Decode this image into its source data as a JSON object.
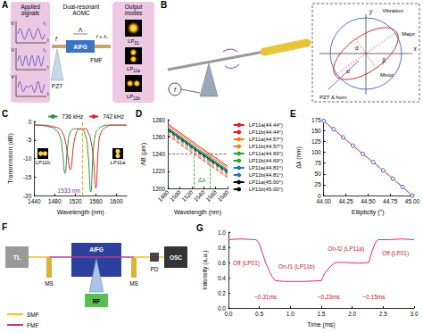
{
  "diagrams": {
    "A": {
      "panel": "A",
      "applied_title": "Applied signals",
      "v_axis": "V",
      "t_axis": "t",
      "signals": [
        "f₁",
        "f₂"
      ],
      "device": "Dual-resonant AOMC",
      "grating": "AIFG",
      "period": "Λ",
      "input": "f",
      "output": "f + fₙ",
      "pzt": "PZT",
      "fiber": "FMF",
      "modes_title": "Output modes",
      "modes": [
        "LP01",
        "LP11a",
        "LP11b"
      ]
    },
    "B": {
      "panel": "B",
      "vibration": "Vibration",
      "minor": "Minor",
      "major": "Major",
      "source": "PZT & horn",
      "x_axis": "x",
      "y_axis": "y",
      "signal": "f",
      "u": "u",
      "alpha": "α",
      "beta": "β"
    },
    "F": {
      "panel": "F",
      "laser": "TL",
      "stage": "MS",
      "grating": "AIFG",
      "scope": "OSC",
      "detector": "PD",
      "driver": "RF",
      "smf": "SMF",
      "fmf": "FMF"
    }
  },
  "chart_data": [
    {
      "panel": "C",
      "type": "line",
      "x_label": "Wavelength (nm)",
      "y_label": "Transmission (dB)",
      "x": [
        1440,
        1450,
        1460,
        1470,
        1480,
        1490,
        1495,
        1500,
        1505,
        1510,
        1520,
        1530,
        1540,
        1545,
        1550,
        1555,
        1560,
        1565,
        1570,
        1580,
        1590,
        1600,
        1610,
        1620
      ],
      "series": [
        {
          "name": "736 kHz",
          "color": "#2e8b3a",
          "values": [
            -1,
            -1,
            -1.2,
            -1.5,
            -2,
            -4,
            -8,
            -14,
            -7,
            -3,
            -2,
            -2,
            -4,
            -9,
            -19,
            -8,
            -3,
            -2,
            -1.5,
            -1,
            -1,
            -1,
            -1,
            -1
          ]
        },
        {
          "name": "742 kHz",
          "color": "#d62728",
          "values": [
            -1,
            -1,
            -1,
            -1.2,
            -1.5,
            -2,
            -3,
            -5,
            -9,
            -13,
            -4,
            -2,
            -2,
            -3,
            -5,
            -10,
            -18,
            -7,
            -3,
            -1.5,
            -1,
            -1,
            -1,
            -1
          ]
        }
      ],
      "xlim": [
        1440,
        1620
      ],
      "xticks": [
        1440,
        1480,
        1520,
        1560,
        1600
      ],
      "ylim": [
        -20,
        0
      ],
      "yticks": [
        -20,
        -15,
        -10,
        -5,
        0
      ],
      "legend": "top right",
      "annotations": [
        {
          "text": "1533 nm",
          "x": 1533
        }
      ],
      "insets": [
        "LP11b",
        "LP11a"
      ]
    },
    {
      "panel": "D",
      "type": "line",
      "x_label": "Wavelength (nm)",
      "y_label": "ΛB (μm)",
      "x": [
        1480,
        1530,
        1580
      ],
      "series": [
        {
          "name": "LP11a(44.44°)",
          "color": "#e31a1c",
          "line_style": "solid",
          "values": [
            1275,
            1250,
            1226
          ]
        },
        {
          "name": "LP11b(44.44°)",
          "color": "#e31a1c",
          "line_style": "dashed",
          "values": [
            1262,
            1237,
            1213
          ]
        },
        {
          "name": "LP11a(44.57°)",
          "color": "#ff7f00",
          "line_style": "solid",
          "values": [
            1273,
            1248,
            1224
          ]
        },
        {
          "name": "LP11b(44.57°)",
          "color": "#ff7f00",
          "line_style": "dashed",
          "values": [
            1264,
            1239,
            1215
          ]
        },
        {
          "name": "LP11a(44.69°)",
          "color": "#33a02c",
          "line_style": "solid",
          "values": [
            1271,
            1246,
            1222
          ]
        },
        {
          "name": "LP11b(44.69°)",
          "color": "#33a02c",
          "line_style": "dashed",
          "values": [
            1266,
            1241,
            1217
          ]
        },
        {
          "name": "LP11a(44.81°)",
          "color": "#1f78b4",
          "line_style": "solid",
          "values": [
            1270,
            1245,
            1221
          ]
        },
        {
          "name": "LP11b(44.81°)",
          "color": "#1f78b4",
          "line_style": "dashed",
          "values": [
            1267,
            1242,
            1218
          ]
        },
        {
          "name": "LP11a(45.00°)",
          "color": "#000000",
          "line_style": "solid",
          "values": [
            1268.5,
            1243.5,
            1219.5
          ]
        },
        {
          "name": "LP11b(45.00°)",
          "color": "#000000",
          "line_style": "dashed",
          "values": [
            1268.5,
            1243.5,
            1219.5
          ]
        }
      ],
      "xlim": [
        1480,
        1580
      ],
      "xticks": [
        1480,
        1500,
        1520,
        1540,
        1560,
        1580
      ],
      "ylim": [
        1200,
        1280
      ],
      "yticks": [
        1200,
        1220,
        1240,
        1260,
        1280
      ],
      "legend": "right",
      "hline": 1240,
      "vlines": [
        1524,
        1550
      ],
      "annotations": [
        {
          "text": "Δλ"
        }
      ]
    },
    {
      "panel": "E",
      "type": "line",
      "x_label": "Ellipticity (°)",
      "y_label": "Δλ (nm)",
      "x": [
        44,
        44.11,
        44.22,
        44.33,
        44.44,
        44.56,
        44.67,
        44.78,
        44.89,
        45
      ],
      "series": [
        {
          "color": "#d62728",
          "marker": "circle",
          "values": [
            172,
            153,
            134,
            115,
            96,
            77,
            58,
            39,
            20,
            0
          ]
        }
      ],
      "xlim": [
        44,
        45
      ],
      "xticks": [
        {
          "value": 44,
          "label": "44.00"
        },
        44.25,
        {
          "value": 44.5,
          "label": "44.50"
        },
        44.75,
        {
          "value": 45,
          "label": "45.00"
        }
      ],
      "ylim": [
        0,
        175
      ],
      "yticks": [
        0,
        25,
        50,
        75,
        100,
        125,
        150,
        175
      ]
    },
    {
      "panel": "G",
      "type": "line",
      "x_label": "Time (ms)",
      "y_label": "Intensity (a.u.)",
      "x": [
        0,
        0.2,
        0.45,
        0.5,
        0.6,
        0.7,
        0.76,
        0.9,
        1.2,
        1.5,
        1.55,
        1.65,
        1.73,
        1.9,
        2.1,
        2.27,
        2.32,
        2.38,
        2.42,
        2.6,
        2.8,
        3.0
      ],
      "series": [
        {
          "color": "#e0218a",
          "values": [
            0.9,
            0.91,
            0.9,
            0.85,
            0.6,
            0.42,
            0.36,
            0.35,
            0.35,
            0.36,
            0.45,
            0.55,
            0.6,
            0.6,
            0.59,
            0.6,
            0.75,
            0.87,
            0.9,
            0.9,
            0.91,
            0.9
          ]
        }
      ],
      "xlim": [
        0,
        3
      ],
      "xticks": [
        {
          "value": 0,
          "label": "0.0"
        },
        0.5,
        {
          "value": 1,
          "label": "1.0"
        },
        1.5,
        {
          "value": 2,
          "label": "2.0"
        },
        2.5,
        {
          "value": 3,
          "label": "3.0"
        }
      ],
      "ylim": [
        0,
        1
      ],
      "yticks": [
        {
          "value": 0,
          "label": "0.0"
        },
        0.2,
        0.4,
        0.6,
        0.8,
        {
          "value": 1,
          "label": "1.0"
        }
      ],
      "annotations": [
        "Off (LP01)",
        "On-f1 (LP11b)",
        "On-f2 (LP11a)",
        "Off (LP01)",
        "~0.31ms",
        "~0.23ms",
        "~0.15ms"
      ]
    }
  ]
}
